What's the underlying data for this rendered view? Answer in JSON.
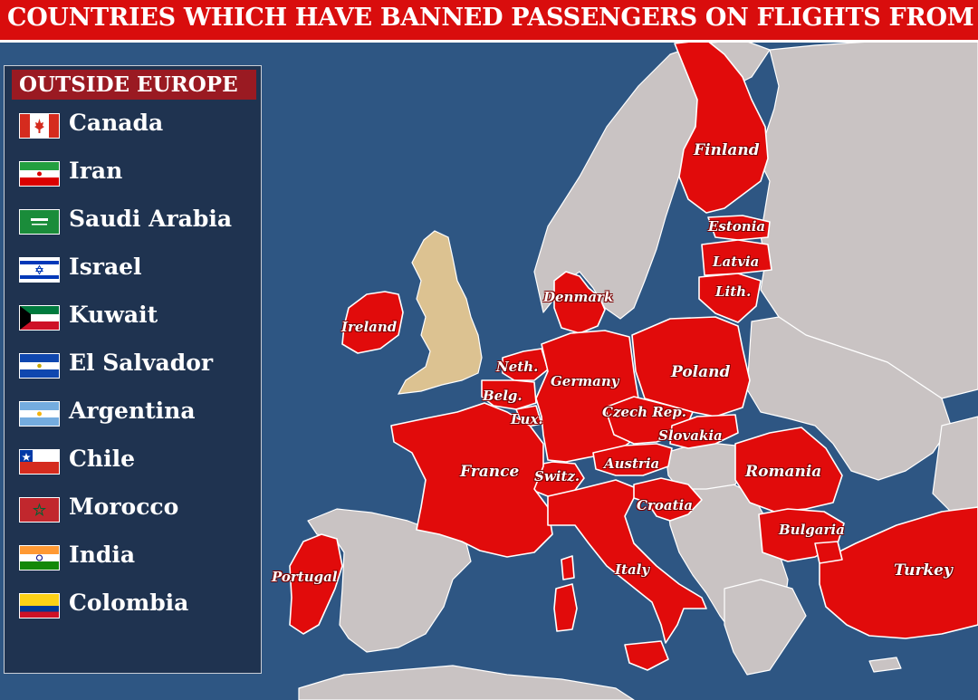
{
  "title": "COUNTRIES WHICH HAVE BANNED PASSENGERS ON FLIGHTS FROM THE UK",
  "legend": {
    "title": "OUTSIDE EUROPE",
    "items": [
      {
        "name": "Canada",
        "flag": "canada-flag-icon"
      },
      {
        "name": "Iran",
        "flag": "iran-flag-icon"
      },
      {
        "name": "Saudi Arabia",
        "flag": "saudi-arabia-flag-icon"
      },
      {
        "name": "Israel",
        "flag": "israel-flag-icon"
      },
      {
        "name": "Kuwait",
        "flag": "kuwait-flag-icon"
      },
      {
        "name": "El Salvador",
        "flag": "el-salvador-flag-icon"
      },
      {
        "name": "Argentina",
        "flag": "argentina-flag-icon"
      },
      {
        "name": "Chile",
        "flag": "chile-flag-icon"
      },
      {
        "name": "Morocco",
        "flag": "morocco-flag-icon"
      },
      {
        "name": "India",
        "flag": "india-flag-icon"
      },
      {
        "name": "Colombia",
        "flag": "colombia-flag-icon"
      }
    ]
  },
  "map": {
    "colors": {
      "sea": "#2e5683",
      "banned": "#e10b0b",
      "other_land": "#c9c3c3",
      "uk": "#dcc291",
      "border": "#ffffff"
    },
    "countries": {
      "finland": "Finland",
      "estonia": "Estonia",
      "latvia": "Latvia",
      "lithuania": "Lith.",
      "denmark": "Denmark",
      "ireland": "Ireland",
      "netherlands": "Neth.",
      "belgium": "Belg.",
      "luxembourg": "Lux.",
      "germany": "Germany",
      "poland": "Poland",
      "czech": "Czech Rep.",
      "slovakia": "Slovakia",
      "austria": "Austria",
      "switzerland": "Switz.",
      "france": "France",
      "romania": "Romania",
      "croatia": "Croatia",
      "bulgaria": "Bulgaria",
      "italy": "Italy",
      "portugal": "Portugal",
      "turkey": "Turkey"
    }
  }
}
